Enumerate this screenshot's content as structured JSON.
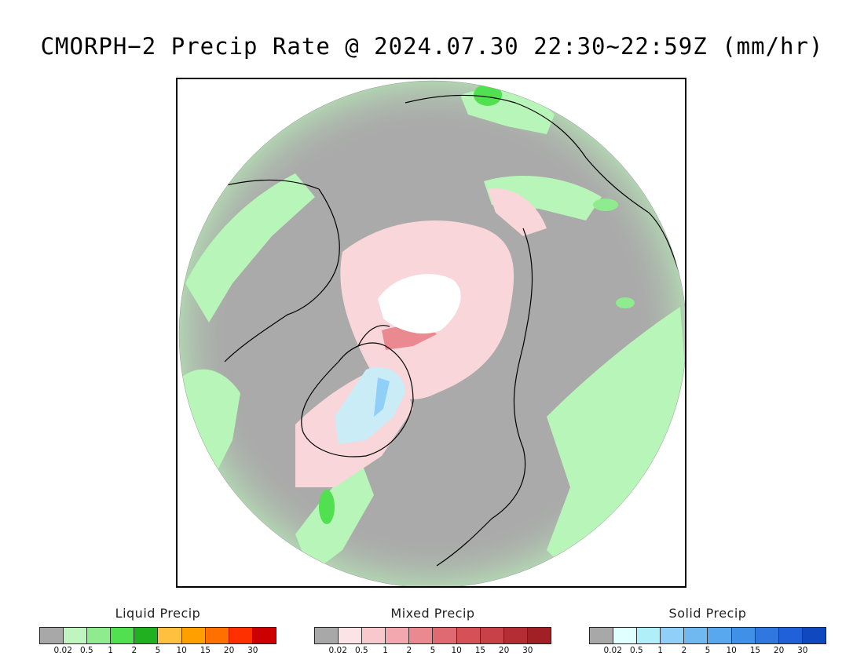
{
  "title": "CMORPH−2 Precip Rate @ 2024.07.30 22:30~22:59Z (mm/hr)",
  "map": {
    "projection": "north-polar-stereographic",
    "background_color": "#aaaaaa",
    "coastline_color": "#000000",
    "no_data_color": "#ffffff",
    "precip_areas": [
      {
        "name": "northwest-pacific-rain",
        "type": "liquid",
        "color": "#b8f5b8"
      },
      {
        "name": "arctic-ocean-mixed",
        "type": "mixed",
        "color": "#f9d6d9"
      },
      {
        "name": "greenland-solid",
        "type": "solid",
        "color": "#c9ecf7"
      },
      {
        "name": "eastern-europe-rain",
        "type": "liquid",
        "color": "#b8f5b8"
      },
      {
        "name": "siberia-rain",
        "type": "liquid",
        "color": "#b8f5b8"
      }
    ]
  },
  "legends": [
    {
      "id": "liquid",
      "title": "Liquid Precip",
      "colors": [
        "#a8a8a8",
        "#c0f5c0",
        "#8eeb8e",
        "#50e050",
        "#20b020",
        "#ffc040",
        "#ffa000",
        "#ff7000",
        "#ff3000",
        "#cc0000"
      ],
      "ticks": [
        "0.02",
        "0.5",
        "1",
        "2",
        "5",
        "10",
        "15",
        "20",
        "30"
      ]
    },
    {
      "id": "mixed",
      "title": "Mixed Precip",
      "colors": [
        "#a8a8a8",
        "#fce3e6",
        "#f8c8cc",
        "#f2a8ae",
        "#ea8a90",
        "#e06a72",
        "#d65058",
        "#c84048",
        "#b42c34",
        "#a02026"
      ],
      "ticks": [
        "0.02",
        "0.5",
        "1",
        "2",
        "5",
        "10",
        "15",
        "20",
        "30"
      ]
    },
    {
      "id": "solid",
      "title": "Solid Precip",
      "colors": [
        "#a8a8a8",
        "#e0ffff",
        "#b0eef8",
        "#90d0f8",
        "#70b8f0",
        "#58a8f0",
        "#4090e8",
        "#3078e0",
        "#2060d8",
        "#1048c0"
      ],
      "ticks": [
        "0.02",
        "0.5",
        "1",
        "2",
        "5",
        "10",
        "15",
        "20",
        "30"
      ]
    }
  ]
}
